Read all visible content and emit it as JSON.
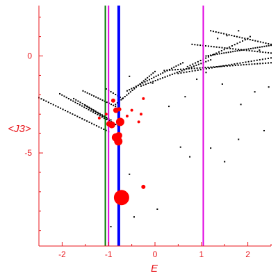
{
  "chart_data": {
    "type": "scatter",
    "xlabel": "E",
    "ylabel": "<J3>",
    "xlim": [
      -2.5,
      2.5
    ],
    "ylim": [
      -9.8,
      2.6
    ],
    "x_ticks": [
      {
        "value": -2,
        "label": "-2"
      },
      {
        "value": -1,
        "label": "-1"
      },
      {
        "value": 0,
        "label": "0"
      },
      {
        "value": 1,
        "label": "1"
      },
      {
        "value": 2,
        "label": "2"
      }
    ],
    "y_ticks": [
      {
        "value": 0,
        "label": "0"
      },
      {
        "value": -5,
        "label": "-5"
      }
    ],
    "colors": {
      "axis": "#e8151b",
      "background_points": "#000000",
      "highlight_points": "#ff0000",
      "green_line": "#007a00",
      "magenta_line": "#e000e0",
      "blue_line": "#0000ff"
    },
    "vertical_lines": [
      {
        "x": -1.07,
        "color": "#007a00",
        "width": 2
      },
      {
        "x": -1.0,
        "color": "#e000e0",
        "width": 2
      },
      {
        "x": -0.78,
        "color": "#0000ff",
        "width": 4
      },
      {
        "x": 1.04,
        "color": "#e000e0",
        "width": 2
      }
    ],
    "highlight_points": [
      {
        "x": -0.72,
        "y": -7.3,
        "size": 11
      },
      {
        "x": -0.79,
        "y": -4.4,
        "size": 6
      },
      {
        "x": -0.84,
        "y": -4.2,
        "size": 6
      },
      {
        "x": -0.78,
        "y": -4.1,
        "size": 5
      },
      {
        "x": -0.75,
        "y": -3.4,
        "size": 6
      },
      {
        "x": -0.93,
        "y": -3.55,
        "size": 5
      },
      {
        "x": -0.99,
        "y": -3.5,
        "size": 4
      },
      {
        "x": -0.84,
        "y": -2.8,
        "size": 4
      },
      {
        "x": -0.77,
        "y": -2.75,
        "size": 3
      },
      {
        "x": -0.9,
        "y": -2.3,
        "size": 3
      },
      {
        "x": -0.25,
        "y": -6.75,
        "size": 3
      },
      {
        "x": -0.35,
        "y": -3.4,
        "size": 2
      },
      {
        "x": -0.3,
        "y": -3.0,
        "size": 2
      },
      {
        "x": -0.25,
        "y": -2.2,
        "size": 2
      },
      {
        "x": -0.5,
        "y": -2.8,
        "size": 2
      },
      {
        "x": -0.6,
        "y": -3.1,
        "size": 2
      },
      {
        "x": -1.2,
        "y": -3.2,
        "size": 2
      },
      {
        "x": -1.05,
        "y": -3.0,
        "size": 2
      }
    ],
    "background_curves": [
      {
        "x0": -2.5,
        "y0": -2.15,
        "x1": -1.0,
        "y1": -3.9,
        "n": 30
      },
      {
        "x0": -2.05,
        "y0": -1.95,
        "x1": -0.95,
        "y1": -3.4,
        "n": 24
      },
      {
        "x0": -1.75,
        "y0": -2.2,
        "x1": -0.95,
        "y1": -3.3,
        "n": 18
      },
      {
        "x0": -1.55,
        "y0": -1.8,
        "x1": -0.85,
        "y1": -2.6,
        "n": 16
      },
      {
        "x0": -1.5,
        "y0": -2.55,
        "x1": -0.8,
        "y1": -3.6,
        "n": 16
      },
      {
        "x0": -1.05,
        "y0": -1.7,
        "x1": -0.7,
        "y1": -2.2,
        "n": 8
      },
      {
        "x0": -0.85,
        "y0": -2.5,
        "x1": 0.0,
        "y1": -0.8,
        "n": 22
      },
      {
        "x0": -0.6,
        "y0": -1.8,
        "x1": 0.6,
        "y1": -0.35,
        "n": 26
      },
      {
        "x0": -0.3,
        "y0": -1.55,
        "x1": 1.2,
        "y1": -0.2,
        "n": 30
      },
      {
        "x0": 0.2,
        "y0": -0.75,
        "x1": 2.5,
        "y1": -0.35,
        "n": 40
      },
      {
        "x0": 0.5,
        "y0": -0.9,
        "x1": 2.5,
        "y1": -0.1,
        "n": 34
      },
      {
        "x0": 1.1,
        "y0": 0.0,
        "x1": 2.5,
        "y1": 0.55,
        "n": 30
      },
      {
        "x0": 0.8,
        "y0": 0.6,
        "x1": 2.5,
        "y1": 0.15,
        "n": 30
      },
      {
        "x0": 1.2,
        "y0": 1.3,
        "x1": 2.5,
        "y1": 0.6,
        "n": 24
      },
      {
        "x0": 0.7,
        "y0": -0.55,
        "x1": 2.0,
        "y1": 0.9,
        "n": 24
      }
    ],
    "background_points": [
      {
        "x": -0.95,
        "y": -8.8
      },
      {
        "x": -0.45,
        "y": -8.3
      },
      {
        "x": 0.05,
        "y": -7.9
      },
      {
        "x": -0.55,
        "y": -6.1
      },
      {
        "x": 0.55,
        "y": -4.7
      },
      {
        "x": 0.75,
        "y": -5.2
      },
      {
        "x": 1.2,
        "y": -4.75
      },
      {
        "x": 1.5,
        "y": -5.45
      },
      {
        "x": 1.8,
        "y": -4.3
      },
      {
        "x": 2.35,
        "y": -3.85
      },
      {
        "x": 0.3,
        "y": -2.6
      },
      {
        "x": 1.85,
        "y": -2.5
      },
      {
        "x": 0.65,
        "y": -2.1
      },
      {
        "x": 2.15,
        "y": -1.85
      },
      {
        "x": 2.45,
        "y": -1.6
      },
      {
        "x": 1.45,
        "y": -1.45
      },
      {
        "x": -0.05,
        "y": -1.4
      },
      {
        "x": 0.9,
        "y": -1.2
      },
      {
        "x": -0.55,
        "y": -1.05
      },
      {
        "x": 1.1,
        "y": -0.85
      },
      {
        "x": 1.55,
        "y": 1.05
      },
      {
        "x": 1.8,
        "y": 1.3
      },
      {
        "x": 2.05,
        "y": 1.0
      },
      {
        "x": 1.35,
        "y": 0.9
      },
      {
        "x": 2.25,
        "y": 0.3
      }
    ]
  }
}
